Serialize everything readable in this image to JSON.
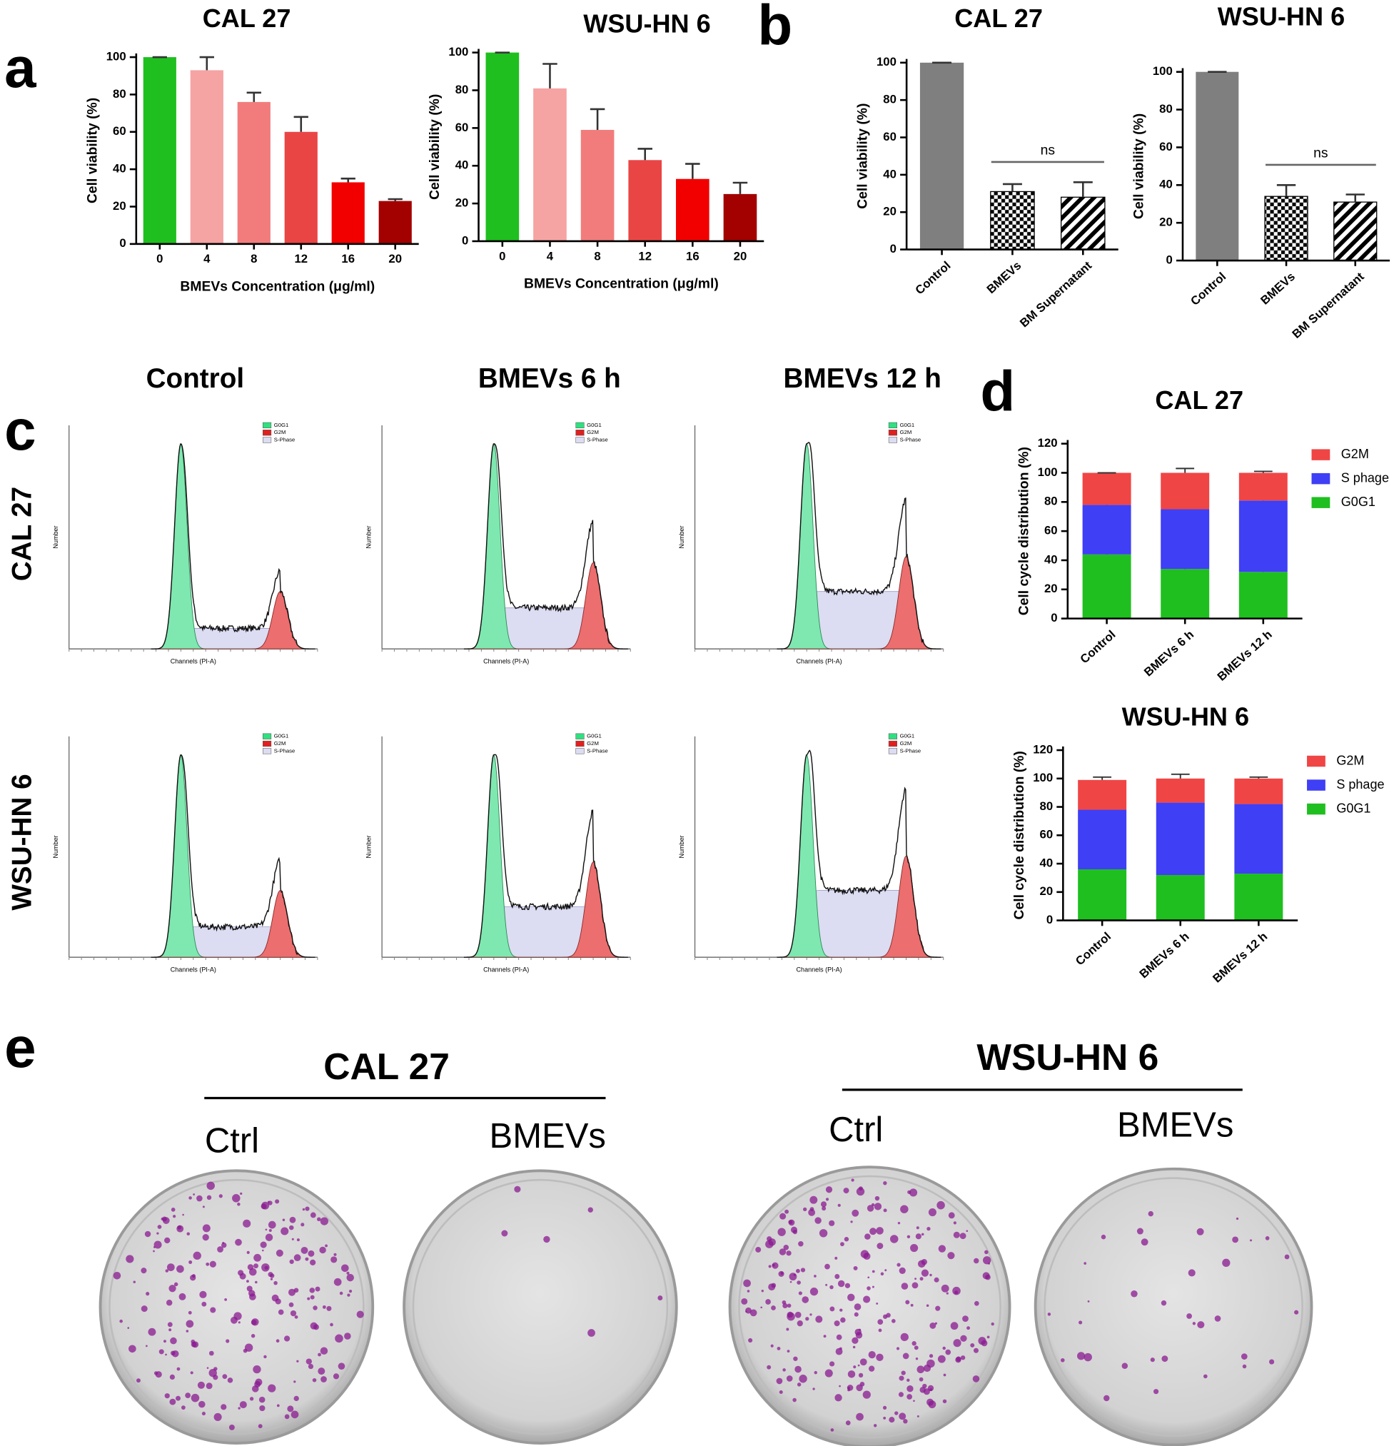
{
  "figure": {
    "panel_labels": [
      "a",
      "b",
      "c",
      "d",
      "e"
    ]
  },
  "chart_data": [
    {
      "type": "bar",
      "title": "CAL 27",
      "x_label": "BMEVs Concentration (μg/ml)",
      "y_label": "Cell viability (%)",
      "categories": [
        "0",
        "4",
        "8",
        "12",
        "16",
        "20"
      ],
      "values": [
        100,
        93,
        76,
        60,
        33,
        23
      ],
      "errors": [
        0,
        7,
        5,
        8,
        2,
        1
      ],
      "colors": [
        "#1fbf1f",
        "#f6a3a3",
        "#f27c7c",
        "#ea4545",
        "#f20000",
        "#a30000"
      ],
      "ylim": [
        0,
        100
      ],
      "yticks": [
        0,
        20,
        40,
        60,
        80,
        100
      ]
    },
    {
      "type": "bar",
      "title": "WSU-HN 6",
      "x_label": "BMEVs Concentration (μg/ml)",
      "y_label": "Cell viability (%)",
      "categories": [
        "0",
        "4",
        "8",
        "12",
        "16",
        "20"
      ],
      "values": [
        100,
        81,
        59,
        43,
        33,
        25
      ],
      "errors": [
        0,
        13,
        11,
        6,
        8,
        6
      ],
      "colors": [
        "#1fbf1f",
        "#f6a3a3",
        "#f27c7c",
        "#ea4545",
        "#f20000",
        "#a30000"
      ],
      "ylim": [
        0,
        100
      ],
      "yticks": [
        0,
        20,
        40,
        60,
        80,
        100
      ]
    },
    {
      "type": "bar",
      "title": "CAL 27",
      "y_label": "Cell viability (%)",
      "categories": [
        "Control",
        "BMEVs",
        "BM Supernatant"
      ],
      "values": [
        100,
        31,
        28
      ],
      "errors": [
        0,
        4,
        8
      ],
      "colors": [
        "#7f7f7f",
        "#000000",
        "#000000"
      ],
      "patterns": [
        "solid",
        "checker",
        "hatch"
      ],
      "annotation": "ns",
      "ylim": [
        0,
        100
      ],
      "yticks": [
        0,
        20,
        40,
        60,
        80,
        100
      ]
    },
    {
      "type": "bar",
      "title": "WSU-HN 6",
      "y_label": "Cell viability (%)",
      "categories": [
        "Control",
        "BMEVs",
        "BM Supernatant"
      ],
      "values": [
        100,
        34,
        31
      ],
      "errors": [
        0,
        6,
        4
      ],
      "colors": [
        "#7f7f7f",
        "#000000",
        "#000000"
      ],
      "patterns": [
        "solid",
        "checker",
        "hatch"
      ],
      "annotation": "ns",
      "ylim": [
        0,
        100
      ],
      "yticks": [
        0,
        20,
        40,
        60,
        80,
        100
      ]
    },
    {
      "type": "stacked_bar",
      "title": "CAL 27",
      "y_label": "Cell cycle distribution (%)",
      "categories": [
        "Control",
        "BMEVs 6 h",
        "BMEVs 12 h"
      ],
      "legend": "right",
      "series": [
        {
          "name": "G0G1",
          "color": "#1fbf1f",
          "values": [
            44,
            34,
            32
          ],
          "errors": [
            1,
            4,
            1
          ]
        },
        {
          "name": "S phage",
          "color": "#3f3ff5",
          "values": [
            34,
            41,
            49
          ],
          "errors": [
            1,
            1,
            1
          ]
        },
        {
          "name": "G2M",
          "color": "#f04545",
          "values": [
            22,
            25,
            19
          ],
          "errors": [
            0,
            3,
            1
          ]
        }
      ],
      "ylim": [
        0,
        120
      ],
      "yticks": [
        0,
        20,
        40,
        60,
        80,
        100,
        120
      ]
    },
    {
      "type": "stacked_bar",
      "title": "WSU-HN 6",
      "y_label": "Cell cycle distribution (%)",
      "categories": [
        "Control",
        "BMEVs 6 h",
        "BMEVs 12 h"
      ],
      "legend": "right",
      "series": [
        {
          "name": "G0G1",
          "color": "#1fbf1f",
          "values": [
            36,
            32,
            33
          ],
          "errors": [
            1,
            1,
            1
          ]
        },
        {
          "name": "S phage",
          "color": "#3f3ff5",
          "values": [
            42,
            51,
            49
          ],
          "errors": [
            2,
            3,
            1
          ]
        },
        {
          "name": "G2M",
          "color": "#f04545",
          "values": [
            21,
            17,
            18
          ],
          "errors": [
            2,
            3,
            1
          ]
        }
      ],
      "ylim": [
        0,
        120
      ],
      "yticks": [
        0,
        20,
        40,
        60,
        80,
        100,
        120
      ]
    }
  ],
  "panel_c": {
    "columns": [
      "Control",
      "BMEVs 6 h",
      "BMEVs 12 h"
    ],
    "rows": [
      "CAL 27",
      "WSU-HN 6"
    ],
    "x_label": "Channels (PI-A)",
    "y_label": "Number",
    "legend": [
      "G0G1",
      "G2M",
      "S-Phase"
    ]
  },
  "panel_e": {
    "groups": [
      {
        "title": "CAL 27",
        "conditions": [
          "Ctrl",
          "BMEVs"
        ]
      },
      {
        "title": "WSU-HN 6",
        "conditions": [
          "Ctrl",
          "BMEVs"
        ]
      }
    ]
  }
}
